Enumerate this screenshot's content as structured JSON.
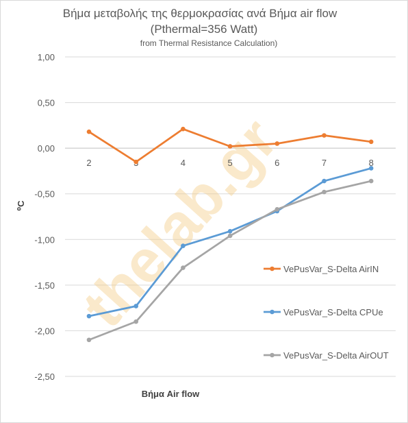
{
  "chart_data": {
    "type": "line",
    "title": "Βήμα μεταβολής της θερμοκρασίας ανά Βήμα air flow",
    "subtitle": "(Pthermal=356 Watt)",
    "subtitle2": "from Thermal Resistance Calculation)",
    "xlabel": "Βήμα Air flow",
    "ylabel": "⁰C",
    "ylim": [
      -2.5,
      1.0
    ],
    "yticks": [
      "1,00",
      "0,50",
      "0,00",
      "-0,50",
      "-1,00",
      "-1,50",
      "-2,00",
      "-2,50"
    ],
    "ytick_values": [
      1.0,
      0.5,
      0.0,
      -0.5,
      -1.0,
      -1.5,
      -2.0,
      -2.5
    ],
    "categories": [
      "2",
      "3",
      "4",
      "5",
      "6",
      "7",
      "8"
    ],
    "grid": true,
    "legend_position": "right",
    "watermark": "thelab.gr",
    "series": [
      {
        "name": "VePusVar_S-Delta AirIN",
        "color": "#ed7d31",
        "values": [
          0.18,
          -0.15,
          0.21,
          0.02,
          0.05,
          0.14,
          0.07
        ]
      },
      {
        "name": "VePusVar_S-Delta CPUe",
        "color": "#5b9bd5",
        "values": [
          -1.84,
          -1.73,
          -1.07,
          -0.91,
          -0.69,
          -0.36,
          -0.22
        ]
      },
      {
        "name": "VePusVar_S-Delta AirOUT",
        "color": "#a5a5a5",
        "values": [
          -2.1,
          -1.9,
          -1.31,
          -0.96,
          -0.67,
          -0.48,
          -0.36
        ]
      }
    ]
  }
}
